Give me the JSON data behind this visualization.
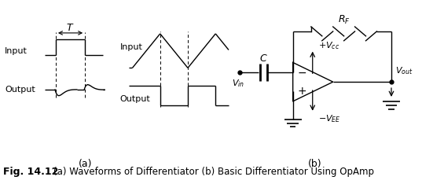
{
  "fig_label": "Fig. 14.12",
  "caption": "    (a) Waveforms of Differentiator (b) Basic Differentiator Using OpAmp",
  "label_a": "(a)",
  "label_b": "(b)",
  "bg_color": "#ffffff",
  "line_color": "#000000"
}
